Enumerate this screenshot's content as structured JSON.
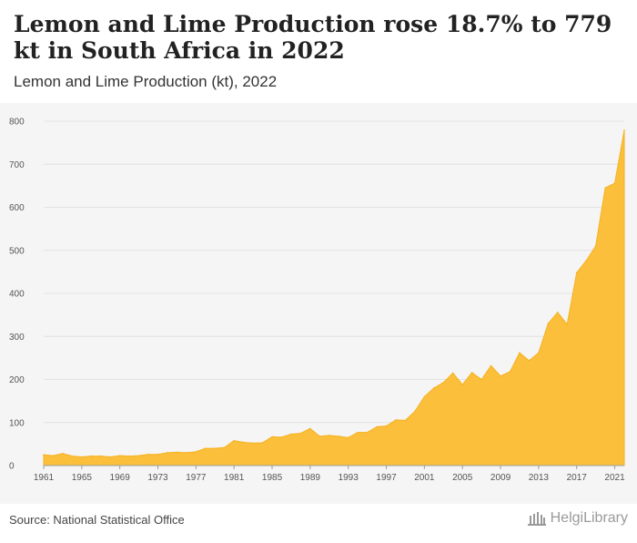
{
  "header": {
    "title": "Lemon and Lime Production rose 18.7% to 779 kt in South Africa in 2022",
    "subtitle": "Lemon and Lime Production (kt), 2022"
  },
  "footer": {
    "source": "Source: National Statistical Office",
    "logo_text": "HelgiLibrary"
  },
  "colors": {
    "area_fill": "#fbbf3c",
    "area_stroke": "#f6b21f",
    "grid": "#e2e2e2",
    "panel_bg": "#f5f5f5"
  },
  "chart_data": {
    "type": "area",
    "title": "Lemon and Lime Production (kt), 2022",
    "xlabel": "",
    "ylabel": "",
    "ylim": [
      0,
      800
    ],
    "y_ticks": [
      0,
      100,
      200,
      300,
      400,
      500,
      600,
      700,
      800
    ],
    "x_ticks": [
      1961,
      1965,
      1969,
      1973,
      1977,
      1981,
      1985,
      1989,
      1993,
      1997,
      2001,
      2005,
      2009,
      2013,
      2017,
      2021
    ],
    "grid": true,
    "legend": "none",
    "series": [
      {
        "x": [
          1961,
          1962,
          1963,
          1964,
          1965,
          1966,
          1967,
          1968,
          1969,
          1970,
          1971,
          1972,
          1973,
          1974,
          1975,
          1976,
          1977,
          1978,
          1979,
          1980,
          1981,
          1982,
          1983,
          1984,
          1985,
          1986,
          1987,
          1988,
          1989,
          1990,
          1991,
          1992,
          1993,
          1994,
          1995,
          1996,
          1997,
          1998,
          1999,
          2000,
          2001,
          2002,
          2003,
          2004,
          2005,
          2006,
          2007,
          2008,
          2009,
          2010,
          2011,
          2012,
          2013,
          2014,
          2015,
          2016,
          2017,
          2018,
          2019,
          2020,
          2021,
          2022
        ],
        "values": [
          25,
          23,
          28,
          22,
          20,
          22,
          22,
          20,
          23,
          22,
          23,
          26,
          26,
          30,
          31,
          30,
          32,
          40,
          40,
          42,
          58,
          54,
          52,
          53,
          67,
          66,
          73,
          75,
          86,
          68,
          70,
          68,
          65,
          77,
          77,
          90,
          92,
          106,
          105,
          126,
          160,
          180,
          193,
          215,
          188,
          216,
          200,
          232,
          208,
          218,
          262,
          244,
          262,
          330,
          356,
          328,
          448,
          476,
          510,
          645,
          656,
          779
        ]
      }
    ]
  }
}
